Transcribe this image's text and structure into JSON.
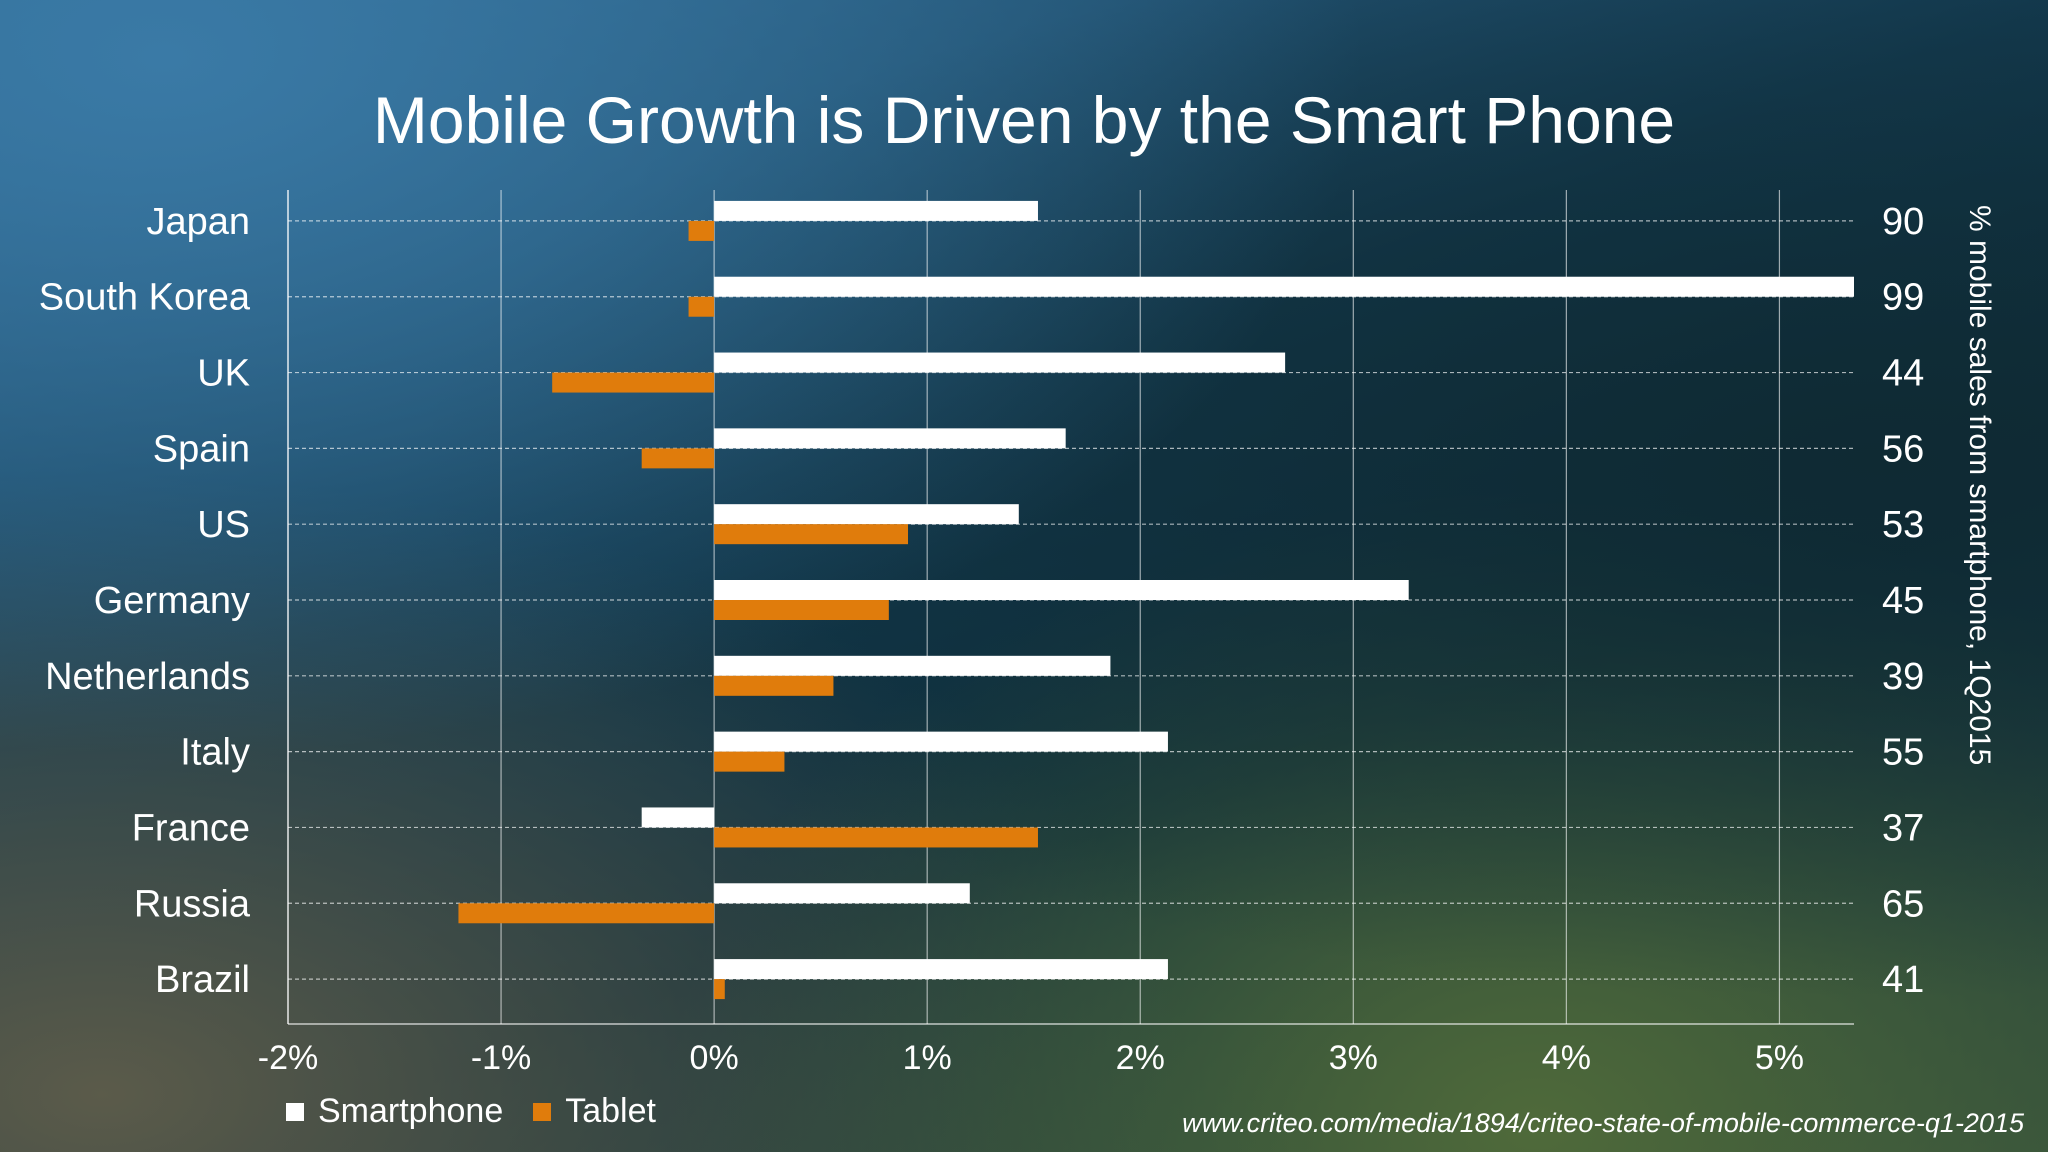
{
  "chart_data": {
    "type": "bar",
    "orientation": "horizontal",
    "title": "Mobile Growth is Driven by the Smart Phone",
    "categories": [
      "Japan",
      "South Korea",
      "UK",
      "Spain",
      "US",
      "Germany",
      "Netherlands",
      "Italy",
      "France",
      "Russia",
      "Brazil"
    ],
    "series": [
      {
        "name": "Smartphone",
        "color": "#ffffff",
        "values": [
          1.52,
          5.35,
          2.68,
          1.65,
          1.43,
          3.26,
          1.86,
          2.13,
          -0.34,
          1.2,
          2.13
        ]
      },
      {
        "name": "Tablet",
        "color": "#e07c0c",
        "values": [
          -0.12,
          -0.12,
          -0.76,
          -0.34,
          0.91,
          0.82,
          0.56,
          0.33,
          1.52,
          -1.2,
          0.05
        ]
      }
    ],
    "xlim": [
      -2,
      5.35
    ],
    "xticks": [
      "-2%",
      "-1%",
      "0%",
      "1%",
      "2%",
      "3%",
      "4%",
      "5%"
    ],
    "xtick_values": [
      -2,
      -1,
      0,
      1,
      2,
      3,
      4,
      5
    ],
    "secondary_labels": [
      "90",
      "99",
      "44",
      "56",
      "53",
      "45",
      "39",
      "55",
      "37",
      "65",
      "41"
    ],
    "secondary_axis_label": "% mobile sales from smartphone, 1Q2015",
    "grid": true,
    "legend_position": "bottom-left"
  },
  "source": "www.criteo.com/media/1894/criteo-state-of-mobile-commerce-q1-2015"
}
